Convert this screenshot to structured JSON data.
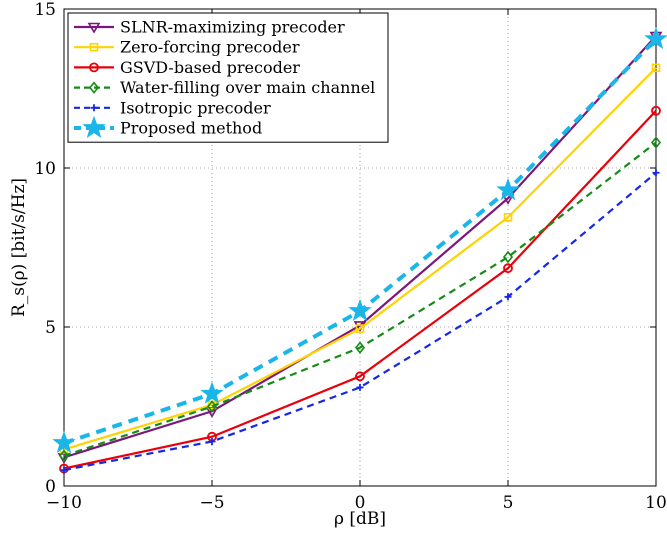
{
  "chart_data": {
    "type": "line",
    "xlabel": "ρ [dB]",
    "ylabel": "R_s(ρ) [bit/s/Hz]",
    "xlim": [
      -10,
      10
    ],
    "ylim": [
      0,
      15
    ],
    "xticks": [
      -10,
      -5,
      0,
      5,
      10
    ],
    "yticks": [
      0,
      5,
      10,
      15
    ],
    "xtick_labels": [
      "−10",
      "−5",
      "0",
      "5",
      "10"
    ],
    "ytick_labels": [
      "0",
      "5",
      "10",
      "15"
    ],
    "grid": true,
    "legend_position": "top-left",
    "x": [
      -10,
      -5,
      0,
      5,
      10
    ],
    "series": [
      {
        "name": "SLNR-maximizing precoder",
        "values": [
          0.9,
          2.35,
          5.05,
          9.05,
          14.15
        ],
        "color": "#7b167b",
        "marker": "triangle-down",
        "dash": "solid"
      },
      {
        "name": "Zero-forcing precoder",
        "values": [
          1.15,
          2.55,
          4.95,
          8.45,
          13.15
        ],
        "color": "#ffd200",
        "marker": "square",
        "dash": "solid"
      },
      {
        "name": "GSVD-based precoder",
        "values": [
          0.55,
          1.55,
          3.45,
          6.85,
          11.8
        ],
        "color": "#e8000b",
        "marker": "circle",
        "dash": "solid"
      },
      {
        "name": "Water-filling over main channel",
        "values": [
          0.95,
          2.5,
          4.35,
          7.2,
          10.8
        ],
        "color": "#158c15",
        "marker": "diamond",
        "dash": "dashed"
      },
      {
        "name": "Isotropic precoder",
        "values": [
          0.5,
          1.4,
          3.1,
          5.95,
          9.85
        ],
        "color": "#1428e6",
        "marker": "plus",
        "dash": "dashed"
      },
      {
        "name": "Proposed method",
        "values": [
          1.35,
          2.9,
          5.5,
          9.3,
          14.05
        ],
        "color": "#1ab6ea",
        "marker": "star",
        "dash": "dashed"
      }
    ]
  }
}
